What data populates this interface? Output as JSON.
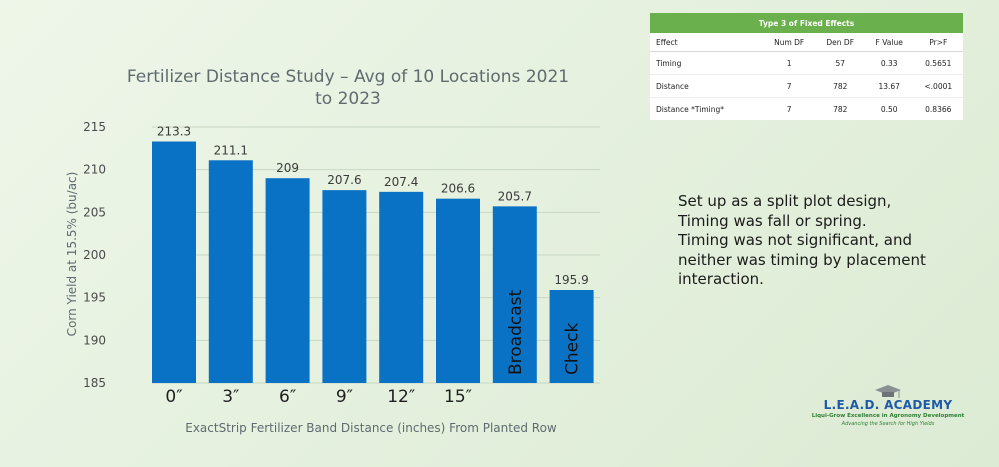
{
  "chart_data": {
    "type": "bar",
    "title_lines": [
      "Fertilizer Distance Study – Avg of 10 Locations 2021",
      "to 2023"
    ],
    "xlabel": "ExactStrip Fertilizer Band Distance (inches) From Planted Row",
    "ylabel": "Corn Yield at 15.5% (bu/ac)",
    "ylim": [
      185,
      215
    ],
    "yticks": [
      "185",
      "190",
      "195",
      "200",
      "205",
      "210",
      "215"
    ],
    "categories": [
      "0″",
      "3″",
      "6″",
      "9″",
      "12″",
      "15″",
      "Broadcast",
      "Check"
    ],
    "values": [
      213.3,
      211.1,
      209,
      207.6,
      207.4,
      206.6,
      205.7,
      195.9
    ],
    "value_labels": [
      "213.3",
      "211.1",
      "209",
      "207.6",
      "207.4",
      "206.6",
      "205.7",
      "195.9"
    ],
    "bar_color": "#0a72c4",
    "grid": true
  },
  "table": {
    "title": "Type 3 of Fixed Effects",
    "header_color": "#6ab04c",
    "columns": [
      "Effect",
      "Num DF",
      "Den DF",
      "F Value",
      "Pr>F"
    ],
    "rows": [
      [
        "Timing",
        "1",
        "57",
        "0.33",
        "0.5651"
      ],
      [
        "Distance",
        "7",
        "782",
        "13.67",
        "<.0001"
      ],
      [
        "Distance *Timing*",
        "7",
        "782",
        "0.50",
        "0.8366"
      ]
    ]
  },
  "note": {
    "lines": [
      "Set up as a split plot design,",
      "Timing was fall or spring.",
      "Timing was not significant, and",
      "neither was timing by placement",
      "interaction."
    ]
  },
  "logo": {
    "name": "L.E.A.D. ACADEMY",
    "tagline": "Liqui-Grow Excellence in Agronomy Development",
    "subtagline": "Advancing the Search for High Yields"
  }
}
